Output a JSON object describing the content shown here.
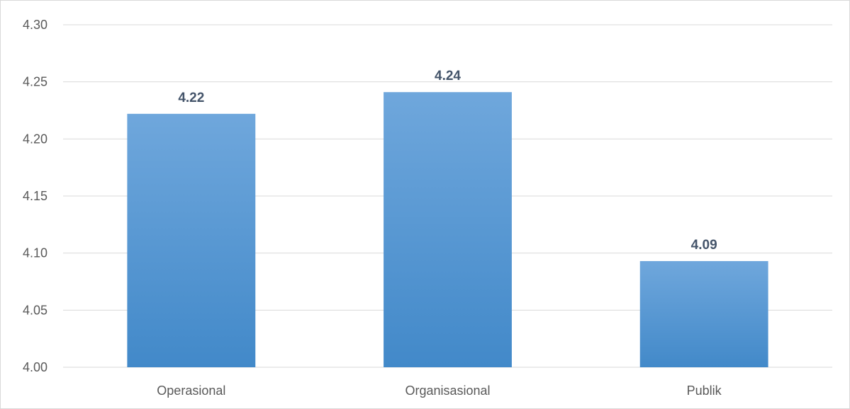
{
  "chart_data": {
    "type": "bar",
    "categories": [
      "Operasional",
      "Organisasional",
      "Publik"
    ],
    "values": [
      4.222,
      4.241,
      4.093
    ],
    "data_labels": [
      "4.22",
      "4.24",
      "4.09"
    ],
    "y_ticks": [
      "4.00",
      "4.05",
      "4.10",
      "4.15",
      "4.20",
      "4.25",
      "4.30"
    ],
    "ylim": [
      4.0,
      4.3
    ],
    "grid": true,
    "legend": "none",
    "bar_color_top": "#6fa7dc",
    "bar_color_bottom": "#4289c9"
  }
}
